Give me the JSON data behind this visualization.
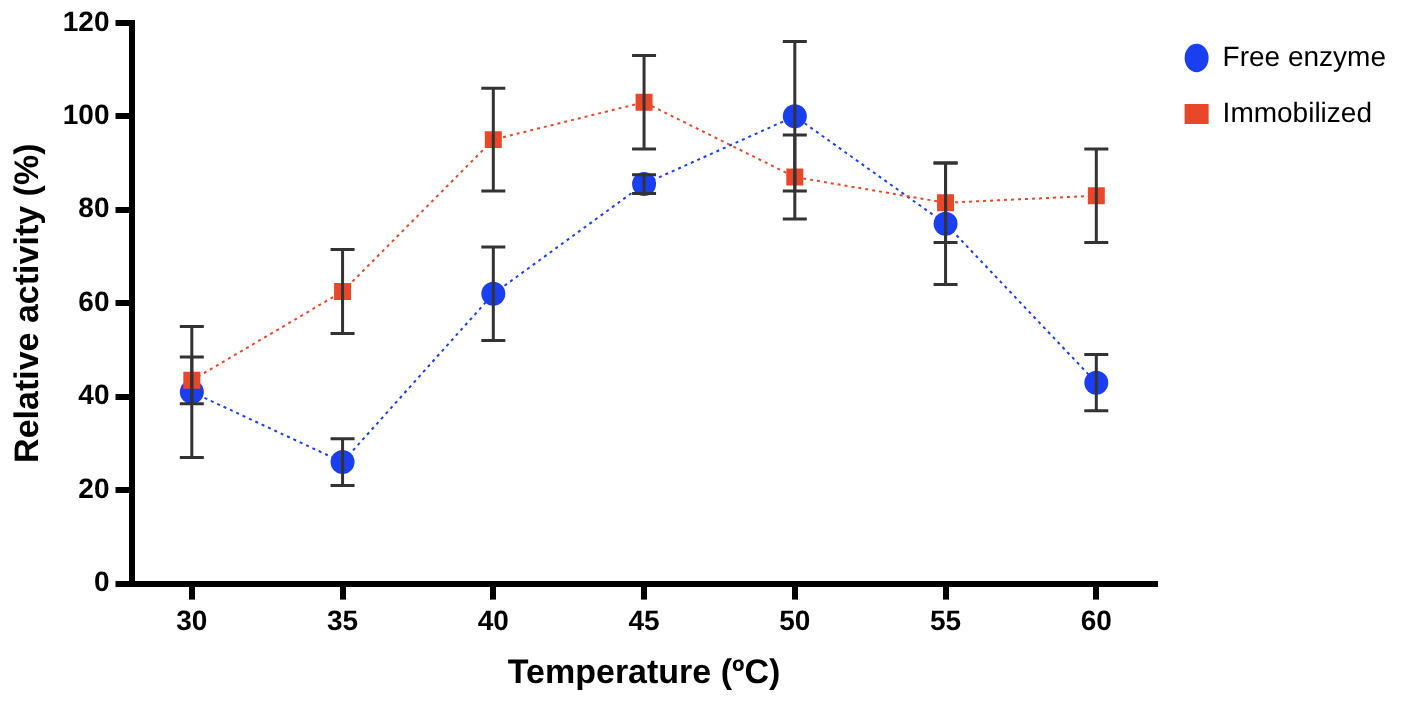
{
  "chart_data": {
    "type": "line",
    "xlabel": "Temperature (ºC)",
    "ylabel": "Relative activity (%)",
    "x": [
      30,
      35,
      40,
      45,
      50,
      55,
      60
    ],
    "series": [
      {
        "name": "Free enzyme",
        "color": "#1a3ff0",
        "marker": "circle",
        "values": [
          41,
          26,
          62,
          85.5,
          100,
          77,
          43
        ],
        "errors": [
          14,
          5,
          10,
          2,
          16,
          13,
          6
        ]
      },
      {
        "name": "Immobilized",
        "color": "#e8472a",
        "marker": "square",
        "values": [
          43.5,
          62.5,
          95,
          103,
          87,
          81.5,
          83
        ],
        "errors": [
          5,
          9,
          11,
          10,
          9,
          8.5,
          10
        ]
      }
    ],
    "xlim": [
      28,
      62
    ],
    "xticks": [
      30,
      35,
      40,
      45,
      50,
      55,
      60
    ],
    "ylim": [
      0,
      120
    ],
    "yticks": [
      0,
      20,
      40,
      60,
      80,
      100,
      120
    ],
    "grid": false,
    "legend": "top right",
    "line_style": "dotted"
  }
}
